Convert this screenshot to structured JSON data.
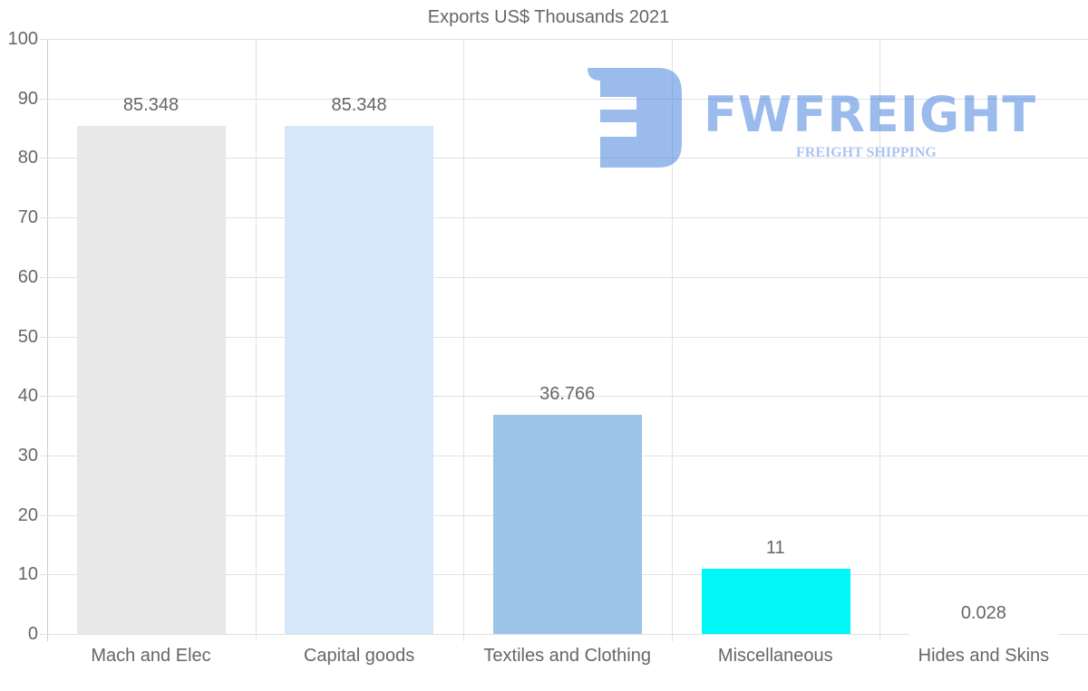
{
  "chart_data": {
    "type": "bar",
    "title": "Exports US$ Thousands 2021",
    "xlabel": "",
    "ylabel": "",
    "categories": [
      "Mach and Elec",
      "Capital goods",
      "Textiles and Clothing",
      "Miscellaneous",
      "Hides and Skins"
    ],
    "values": [
      85.348,
      85.348,
      36.766,
      11,
      0.028
    ],
    "value_labels": [
      "85.348",
      "85.348",
      "36.766",
      "11",
      "0.028"
    ],
    "colors": [
      "#e8e8e8",
      "#d6e7f9",
      "#9bc4e7",
      "#00f6f7",
      "#ffffff"
    ],
    "ylim": [
      0,
      100
    ],
    "yticks": [
      "100",
      "90",
      "80",
      "70",
      "60",
      "50",
      "40",
      "30",
      "20",
      "10",
      "0"
    ],
    "grid": true,
    "legend": "none"
  },
  "watermark": {
    "brand": "FWFREIGHT",
    "tagline": "FREIGHT SHIPPING",
    "color": "#4a84e0"
  }
}
